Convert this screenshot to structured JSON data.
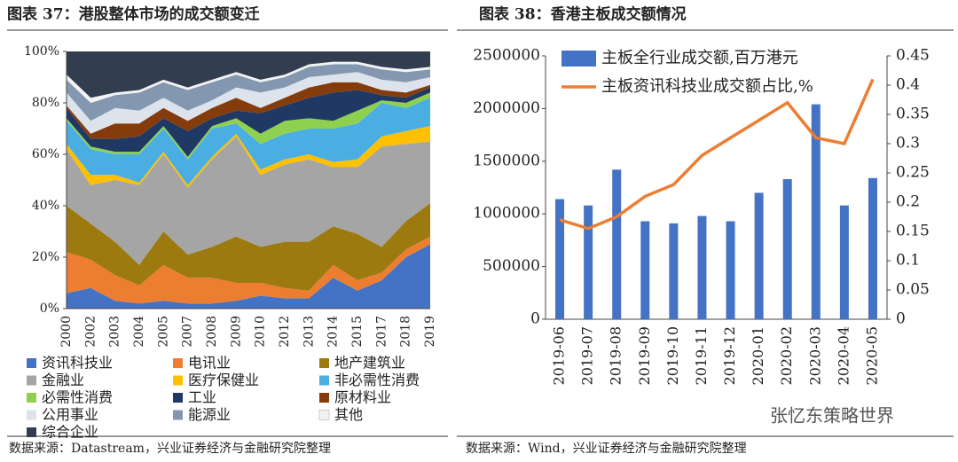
{
  "chart_data": [
    {
      "type": "stacked_area",
      "title": "图表 37：港股整体市场的成交额变迁",
      "source": "数据来源：Datastream，兴业证券经济与金融研究院整理",
      "categories": [
        "2000",
        "2002",
        "2003",
        "2004",
        "2005",
        "2007",
        "2008",
        "2009",
        "2010",
        "2012",
        "2013",
        "2014",
        "2015",
        "2017",
        "2018",
        "2019"
      ],
      "ylim": [
        0,
        100
      ],
      "yticks": [
        {
          "value": 0,
          "label": "0%"
        },
        {
          "value": 20,
          "label": "20%"
        },
        {
          "value": 40,
          "label": "40%"
        },
        {
          "value": 60,
          "label": "60%"
        },
        {
          "value": 80,
          "label": "80%"
        },
        {
          "value": 100,
          "label": "100%"
        }
      ],
      "series": [
        {
          "name": "资讯科技业",
          "color": "#4472c4",
          "values": [
            6,
            8,
            3,
            2,
            3,
            2,
            2,
            3,
            5,
            4,
            4,
            12,
            7,
            11,
            20,
            25
          ]
        },
        {
          "name": "电讯业",
          "color": "#ed7d31",
          "values": [
            16,
            11,
            10,
            7,
            14,
            10,
            10,
            7,
            5,
            4,
            3,
            5,
            4,
            3,
            3,
            3
          ]
        },
        {
          "name": "地产建筑业",
          "color": "#9c7a0f",
          "values": [
            18,
            14,
            13,
            8,
            13,
            9,
            12,
            18,
            14,
            18,
            19,
            15,
            18,
            10,
            11,
            13
          ]
        },
        {
          "name": "金融业",
          "color": "#a5a5a5",
          "values": [
            22,
            15,
            24,
            31,
            30,
            26,
            34,
            39,
            28,
            30,
            32,
            23,
            26,
            39,
            30,
            24
          ]
        },
        {
          "name": "医疗保健业",
          "color": "#ffc000",
          "values": [
            2,
            4,
            2,
            1,
            1,
            1,
            1,
            1,
            2,
            2,
            2,
            2,
            3,
            4,
            5,
            6
          ]
        },
        {
          "name": "非必需性消费",
          "color": "#4aaee3",
          "values": [
            9,
            10,
            8,
            11,
            9,
            10,
            11,
            4,
            10,
            10,
            10,
            13,
            14,
            13,
            9,
            11
          ]
        },
        {
          "name": "必需性消费",
          "color": "#8fd14f",
          "values": [
            1,
            1,
            1,
            1,
            1,
            1,
            1,
            2,
            4,
            5,
            4,
            3,
            5,
            1,
            2,
            2
          ]
        },
        {
          "name": "工业",
          "color": "#1f3864",
          "values": [
            4,
            3,
            5,
            6,
            3,
            10,
            3,
            3,
            8,
            6,
            8,
            11,
            8,
            2,
            2,
            2
          ]
        },
        {
          "name": "原材料业",
          "color": "#843c0c",
          "values": [
            1,
            2,
            6,
            5,
            4,
            4,
            4,
            5,
            2,
            3,
            4,
            4,
            3,
            2,
            2,
            1
          ]
        },
        {
          "name": "公用事业",
          "color": "#dde3ec",
          "values": [
            5,
            5,
            6,
            5,
            4,
            4,
            3,
            4,
            6,
            4,
            4,
            3,
            4,
            4,
            4,
            3
          ]
        },
        {
          "name": "能源业",
          "color": "#8497b0",
          "values": [
            5,
            7,
            5,
            7,
            6,
            8,
            7,
            5,
            4,
            4,
            4,
            4,
            3,
            4,
            4,
            3
          ]
        },
        {
          "name": "其他",
          "color": "#f2f2f2",
          "values": [
            2,
            2,
            1,
            1,
            1,
            1,
            1,
            1,
            1,
            1,
            1,
            1,
            1,
            1,
            1,
            1
          ]
        },
        {
          "name": "综合企业",
          "color": "#323e4f",
          "values": [
            9,
            18,
            16,
            15,
            11,
            14,
            11,
            8,
            11,
            9,
            5,
            4,
            4,
            6,
            7,
            6
          ]
        }
      ]
    },
    {
      "type": "bar_line",
      "title": "图表 38：香港主板成交额情况",
      "source": "数据来源：Wind，兴业证券经济与金融研究院整理",
      "watermark": "张忆东策略世界",
      "categories": [
        "2019-06",
        "2019-07",
        "2019-08",
        "2019-09",
        "2019-10",
        "2019-11",
        "2019-12",
        "2020-01",
        "2020-02",
        "2020-03",
        "2020-04",
        "2020-05"
      ],
      "ylim": [
        0,
        2500000
      ],
      "yticks": [
        0,
        500000,
        1000000,
        1500000,
        2000000,
        2500000
      ],
      "y2lim": [
        0,
        0.45
      ],
      "y2ticks": [
        0,
        0.05,
        0.1,
        0.15,
        0.2,
        0.25,
        0.3,
        0.35,
        0.4,
        0.45
      ],
      "series": [
        {
          "name": "主板全行业成交额,百万港元",
          "color": "#4472c4",
          "values": [
            1140000,
            1080000,
            1420000,
            930000,
            910000,
            980000,
            930000,
            1200000,
            1330000,
            2040000,
            1080000,
            1340000
          ]
        },
        {
          "name": "主板资讯科技业成交额占比,%",
          "color": "#ed7d31",
          "axis": "y2",
          "values": [
            0.17,
            0.155,
            0.175,
            0.21,
            0.23,
            0.28,
            0.31,
            0.34,
            0.37,
            0.31,
            0.3,
            0.41
          ]
        }
      ]
    }
  ]
}
